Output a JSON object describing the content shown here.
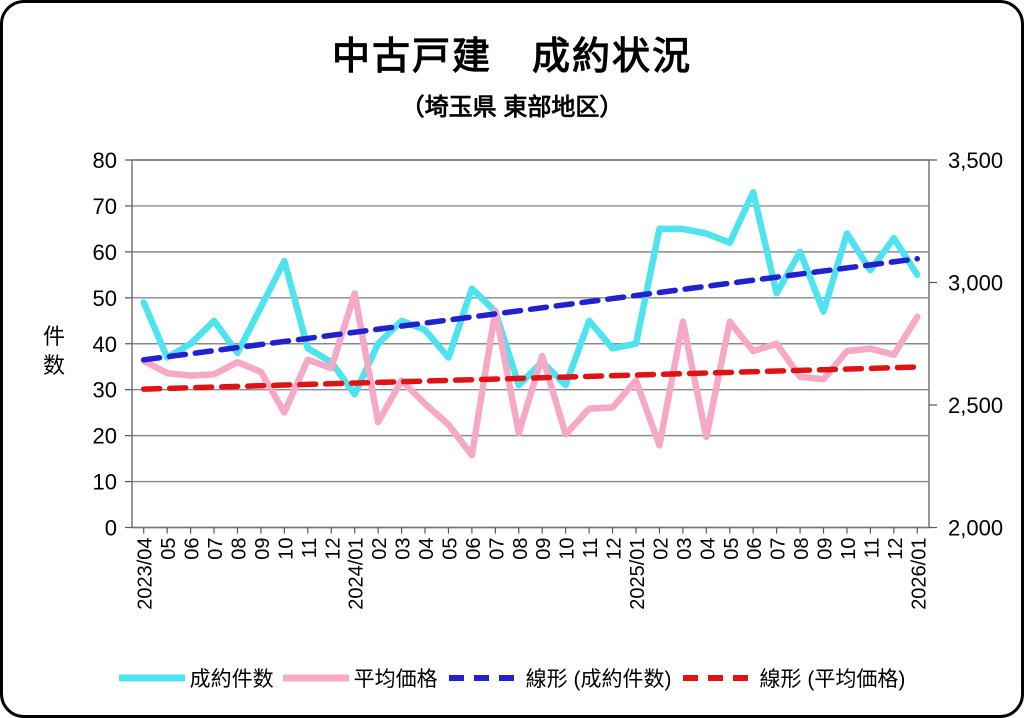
{
  "title": "中古戸建　成約状況",
  "subtitle": "（埼玉県 東部地区）",
  "chart_data": {
    "type": "line",
    "categories": [
      "2023/04",
      "05",
      "06",
      "07",
      "08",
      "09",
      "10",
      "11",
      "12",
      "2024/01",
      "02",
      "03",
      "04",
      "05",
      "06",
      "07",
      "08",
      "09",
      "10",
      "11",
      "12",
      "2025/01",
      "02",
      "03",
      "04",
      "05",
      "06",
      "07",
      "08",
      "09",
      "10",
      "11",
      "12",
      "2026/01"
    ],
    "series": [
      {
        "key": "contract-count",
        "name": "成約件数",
        "axis": "left",
        "color": "#4fe3ef",
        "values": [
          49,
          37,
          40,
          45,
          38,
          48,
          58,
          39,
          36,
          29,
          40,
          45,
          43,
          37,
          52,
          47,
          31,
          36,
          31,
          45,
          39,
          40,
          65,
          65,
          64,
          62,
          73,
          51,
          60,
          47,
          64,
          56,
          63,
          55
        ]
      },
      {
        "key": "average-price",
        "name": "平均価格",
        "axis": "right",
        "color": "#f6a9c7",
        "values": [
          2680,
          2630,
          2620,
          2625,
          2675,
          2635,
          2470,
          2685,
          2650,
          2955,
          2430,
          2600,
          2505,
          2420,
          2295,
          2885,
          2385,
          2700,
          2380,
          2485,
          2490,
          2600,
          2335,
          2840,
          2370,
          2840,
          2720,
          2750,
          2615,
          2605,
          2720,
          2730,
          2705,
          2860
        ]
      }
    ],
    "trendlines": [
      {
        "key": "trend-contract-count",
        "name": "線形 (成約件数)",
        "axis": "left",
        "color": "#2121cf",
        "start": 36.5,
        "end": 58.5
      },
      {
        "key": "trend-average-price",
        "name": "線形 (平均価格)",
        "axis": "right",
        "color": "#de1414",
        "start": 2565,
        "end": 2655
      }
    ],
    "left_axis": {
      "label": "件数",
      "min": 0,
      "max": 80,
      "step": 10
    },
    "right_axis": {
      "min": 2000,
      "max": 3500,
      "step": 500
    },
    "grid": true,
    "legend_position": "bottom"
  }
}
